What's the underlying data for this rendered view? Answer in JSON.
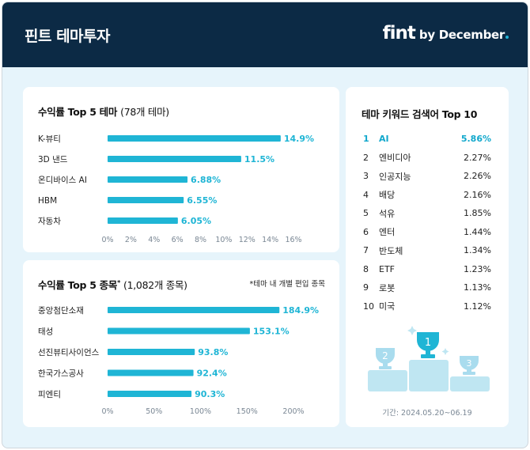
{
  "header": {
    "title": "핀트 테마투자",
    "brand_main": "fint",
    "brand_sub": "by December"
  },
  "themes_card": {
    "title": "수익률 Top 5 테마",
    "subtitle": "(78개 테마)"
  },
  "stocks_card": {
    "title": "수익률 Top 5 종목",
    "asterisk": "*",
    "subtitle": "(1,082개 종목)",
    "note": "*테마 내 개별 편입 종목"
  },
  "keywords_card": {
    "title": "테마 키워드 검색어 Top 10",
    "items": [
      {
        "rank": "1",
        "name": "AI",
        "value": "5.86%"
      },
      {
        "rank": "2",
        "name": "엔비디아",
        "value": "2.27%"
      },
      {
        "rank": "3",
        "name": "인공지능",
        "value": "2.26%"
      },
      {
        "rank": "4",
        "name": "배당",
        "value": "2.16%"
      },
      {
        "rank": "5",
        "name": "석유",
        "value": "1.85%"
      },
      {
        "rank": "6",
        "name": "엔터",
        "value": "1.44%"
      },
      {
        "rank": "7",
        "name": "반도체",
        "value": "1.34%"
      },
      {
        "rank": "8",
        "name": "ETF",
        "value": "1.23%"
      },
      {
        "rank": "9",
        "name": "로봇",
        "value": "1.13%"
      },
      {
        "rank": "10",
        "name": "미국",
        "value": "1.12%"
      }
    ],
    "podium": [
      "1",
      "2",
      "3"
    ],
    "period": "기간: 2024.05.20~06.19"
  },
  "colors": {
    "accent": "#1fb5d5",
    "header_bg": "#0c2a45",
    "page_bg": "#e6f4fb"
  },
  "chart_data": [
    {
      "type": "bar",
      "orientation": "horizontal",
      "title": "수익률 Top 5 테마",
      "categories": [
        "K-뷰티",
        "3D 낸드",
        "온디바이스 AI",
        "HBM",
        "자동차"
      ],
      "values": [
        14.9,
        11.5,
        6.88,
        6.55,
        6.05
      ],
      "value_labels": [
        "14.9%",
        "11.5%",
        "6.88%",
        "6.55%",
        "6.05%"
      ],
      "xlim": [
        0,
        16
      ],
      "xticks": [
        0,
        2,
        4,
        6,
        8,
        10,
        12,
        14,
        16
      ],
      "xtick_labels": [
        "0%",
        "2%",
        "4%",
        "6%",
        "8%",
        "10%",
        "12%",
        "14%",
        "16%"
      ]
    },
    {
      "type": "bar",
      "orientation": "horizontal",
      "title": "수익률 Top 5 종목",
      "categories": [
        "중앙첨단소재",
        "태성",
        "선진뷰티사이언스",
        "한국가스공사",
        "피엔티"
      ],
      "values": [
        184.9,
        153.1,
        93.8,
        92.4,
        90.3
      ],
      "value_labels": [
        "184.9%",
        "153.1%",
        "93.8%",
        "92.4%",
        "90.3%"
      ],
      "xlim": [
        0,
        200
      ],
      "xticks": [
        0,
        50,
        100,
        150,
        200
      ],
      "xtick_labels": [
        "0%",
        "50%",
        "100%",
        "150%",
        "200%"
      ]
    }
  ]
}
